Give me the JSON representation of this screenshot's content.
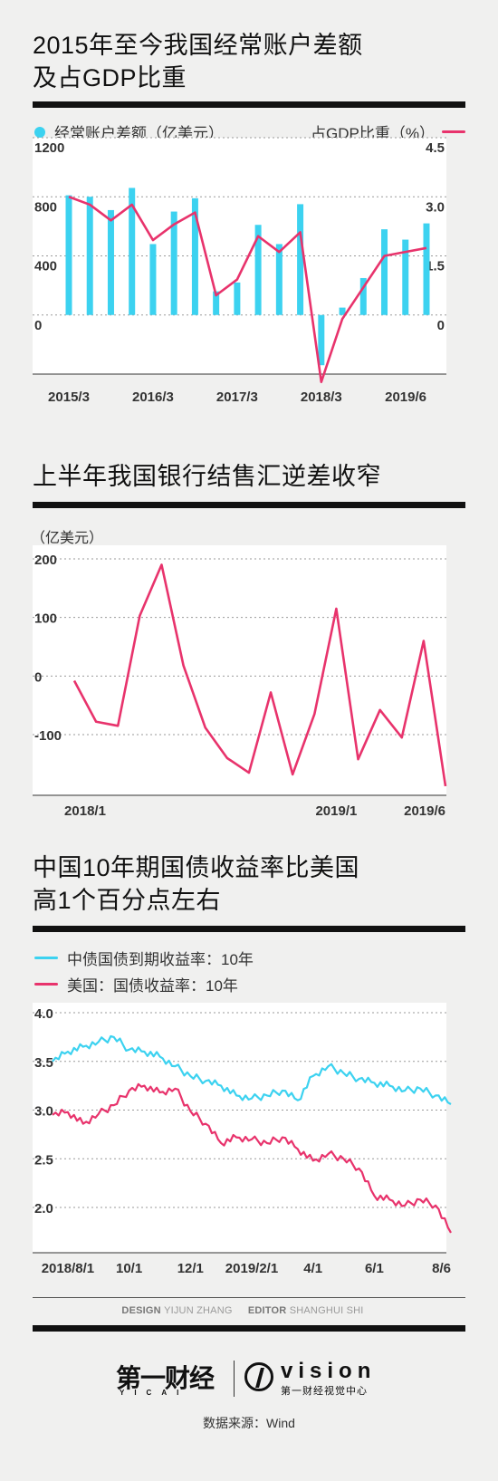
{
  "chart1": {
    "title_line1": "2015年至今我国经常账户差额",
    "title_line2": "及占GDP比重",
    "legend_left": "经常账户差额（亿美元）",
    "legend_right": "占GDP比重（%）",
    "colors": {
      "bar": "#3cd2f0",
      "line": "#e8336c"
    }
  },
  "chart2": {
    "title": "上半年我国银行结售汇逆差收窄",
    "unit": "（亿美元）",
    "colors": {
      "line": "#e8336c"
    }
  },
  "chart3": {
    "title_line1": "中国10年期国债收益率比美国",
    "title_line2": "高1个百分点左右",
    "legend_cn": "中债国债到期收益率：10年",
    "legend_us": "美国：国债收益率：10年",
    "colors": {
      "cn": "#3cd2f0",
      "us": "#e8336c"
    }
  },
  "credits": {
    "design_label": "DESIGN",
    "design_name": "YIJUN ZHANG",
    "editor_label": "EDITOR",
    "editor_name": "SHANGHUI SHI"
  },
  "footer": {
    "yicai_logo": "第一财经",
    "yicai_sub": "YICAI",
    "vision_logo": "vision",
    "vision_sub": "第一财经视觉中心",
    "source": "数据来源：Wind"
  },
  "chart_data": [
    {
      "type": "bar",
      "title": "2015年至今我国经常账户差额及占GDP比重",
      "x_tick_labels": [
        "2015/3",
        "2016/3",
        "2017/3",
        "2018/3",
        "2019/6"
      ],
      "categories": [
        "2015Q1",
        "2015Q2",
        "2015Q3",
        "2015Q4",
        "2016Q1",
        "2016Q2",
        "2016Q3",
        "2016Q4",
        "2017Q1",
        "2017Q2",
        "2017Q3",
        "2017Q4",
        "2018Q1",
        "2018Q2",
        "2018Q3",
        "2018Q4",
        "2019Q1",
        "2019Q2"
      ],
      "series": [
        {
          "name": "经常账户差额（亿美元）",
          "axis": "left",
          "kind": "bar",
          "values": [
            810,
            800,
            710,
            860,
            480,
            700,
            790,
            160,
            220,
            610,
            480,
            750,
            -340,
            50,
            250,
            580,
            510,
            620
          ]
        },
        {
          "name": "占GDP比重（%）",
          "axis": "right",
          "kind": "line",
          "values": [
            3.0,
            2.8,
            2.4,
            2.8,
            1.9,
            2.3,
            2.6,
            0.5,
            0.9,
            2.0,
            1.6,
            2.1,
            -1.7,
            -0.1,
            0.7,
            1.5,
            1.6,
            1.7
          ]
        }
      ],
      "y_left": {
        "ticks": [
          0,
          400,
          800,
          1200
        ],
        "lim": [
          -400,
          1200
        ]
      },
      "y_right": {
        "ticks": [
          0,
          1.5,
          3.0,
          4.5
        ],
        "tick_labels": [
          "0",
          "1.5",
          "3.0",
          "4.5"
        ],
        "lim": [
          -1.5,
          4.5
        ]
      }
    },
    {
      "type": "line",
      "title": "上半年我国银行结售汇逆差收窄",
      "ylabel": "（亿美元）",
      "x_tick_labels": [
        "2018/1",
        "2019/1",
        "2019/6"
      ],
      "x": [
        "2018/1",
        "2018/2",
        "2018/3",
        "2018/4",
        "2018/5",
        "2018/6",
        "2018/7",
        "2018/8",
        "2018/9",
        "2018/10",
        "2018/11",
        "2018/12",
        "2019/1",
        "2019/2",
        "2019/3",
        "2019/4",
        "2019/5",
        "2019/6"
      ],
      "series": [
        {
          "name": "银行结售汇差额",
          "values": [
            -8,
            -78,
            -85,
            103,
            190,
            18,
            -88,
            -140,
            -165,
            -28,
            -168,
            -65,
            115,
            -142,
            -58,
            -105,
            60,
            -188
          ]
        }
      ],
      "y_ticks": [
        -100,
        0,
        100,
        200
      ],
      "ylim": [
        -200,
        200
      ],
      "grid": true
    },
    {
      "type": "line",
      "title": "中国10年期国债收益率比美国高1个百分点左右",
      "x_tick_labels": [
        "2018/8/1",
        "10/1",
        "12/1",
        "2019/2/1",
        "4/1",
        "6/1",
        "8/6"
      ],
      "x": [
        "2018/7/20",
        "2018/8/1",
        "2018/8/15",
        "2018/9/1",
        "2018/9/15",
        "2018/10/1",
        "2018/10/15",
        "2018/11/1",
        "2018/11/15",
        "2018/12/1",
        "2018/12/15",
        "2019/1/1",
        "2019/1/15",
        "2019/2/1",
        "2019/2/15",
        "2019/3/1",
        "2019/3/15",
        "2019/4/1",
        "2019/4/15",
        "2019/5/1",
        "2019/5/15",
        "2019/6/1",
        "2019/6/15",
        "2019/7/1",
        "2019/7/15",
        "2019/8/1",
        "2019/8/6"
      ],
      "series": [
        {
          "name": "中债国债到期收益率：10年",
          "values": [
            3.5,
            3.6,
            3.65,
            3.7,
            3.75,
            3.62,
            3.6,
            3.55,
            3.45,
            3.35,
            3.3,
            3.25,
            3.15,
            3.12,
            3.15,
            3.2,
            3.1,
            3.35,
            3.45,
            3.38,
            3.32,
            3.28,
            3.25,
            3.2,
            3.22,
            3.15,
            3.06
          ]
        },
        {
          "name": "美国：国债收益率：10年",
          "values": [
            2.95,
            2.98,
            2.86,
            2.96,
            3.05,
            3.2,
            3.25,
            3.18,
            3.22,
            2.99,
            2.86,
            2.66,
            2.72,
            2.7,
            2.66,
            2.72,
            2.6,
            2.48,
            2.55,
            2.5,
            2.4,
            2.12,
            2.08,
            2.02,
            2.08,
            2.02,
            1.74
          ]
        }
      ],
      "y_ticks": [
        2.0,
        2.5,
        3.0,
        3.5,
        4.0
      ],
      "y_tick_labels": [
        "2.0",
        "2.5",
        "3.0",
        "3.5",
        "4.0"
      ],
      "ylim": [
        1.6,
        4.0
      ],
      "grid": true
    }
  ]
}
